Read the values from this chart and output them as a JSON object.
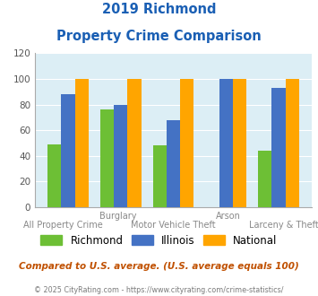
{
  "title_line1": "2019 Richmond",
  "title_line2": "Property Crime Comparison",
  "richmond": [
    49,
    76,
    48,
    0,
    44
  ],
  "illinois": [
    88,
    80,
    68,
    100,
    93
  ],
  "national": [
    100,
    100,
    100,
    100,
    100
  ],
  "bar_colors": {
    "richmond": "#6dbf35",
    "illinois": "#4472c4",
    "national": "#ffa500"
  },
  "ylim": [
    0,
    120
  ],
  "yticks": [
    0,
    20,
    40,
    60,
    80,
    100,
    120
  ],
  "legend_labels": [
    "Richmond",
    "Illinois",
    "National"
  ],
  "top_labels": [
    "",
    "Burglary",
    "",
    "Arson",
    ""
  ],
  "bot_labels": [
    "All Property Crime",
    "",
    "Motor Vehicle Theft",
    "",
    "Larceny & Theft"
  ],
  "footnote1": "Compared to U.S. average. (U.S. average equals 100)",
  "footnote2": "© 2025 CityRating.com - https://www.cityrating.com/crime-statistics/",
  "bg_color": "#dceef5",
  "title_color": "#1a5fb4",
  "footnote1_color": "#c05000",
  "footnote2_color": "#7a7a7a",
  "footnote2_link_color": "#1a7abf"
}
